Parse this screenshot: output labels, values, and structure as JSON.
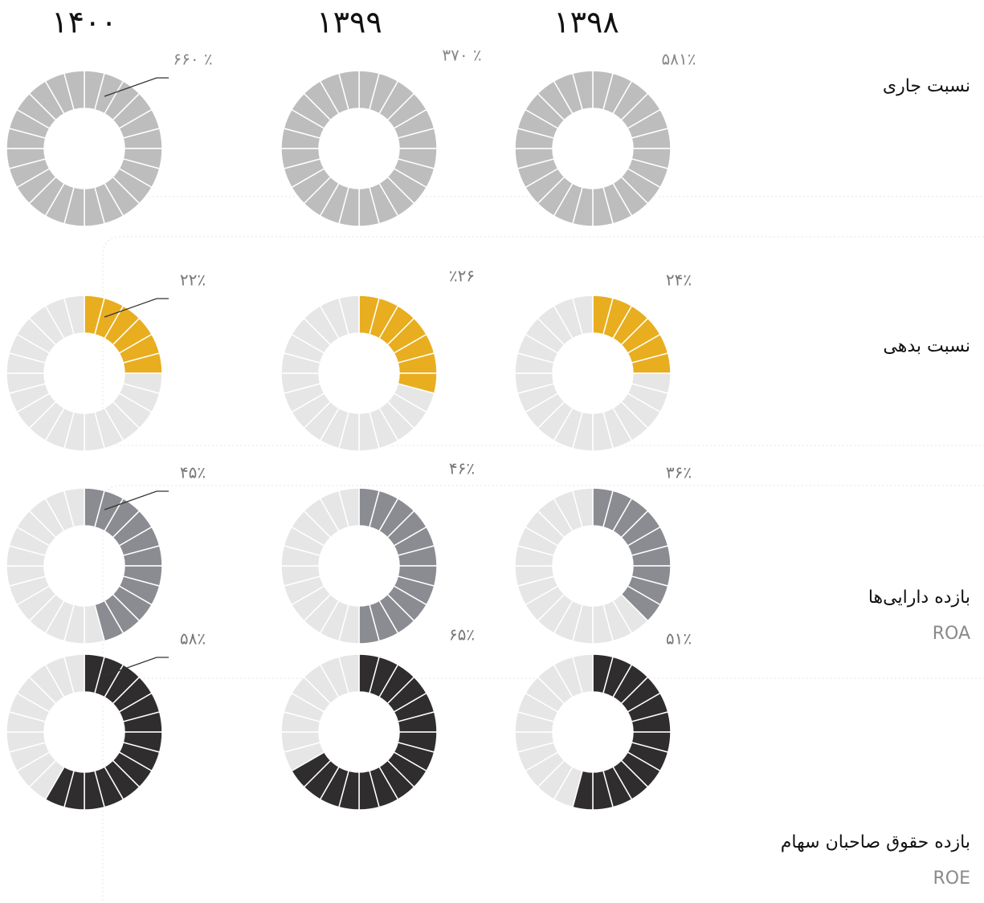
{
  "years": [
    "۱۴۰۰",
    "۱۳۹۹",
    "۱۳۹۸"
  ],
  "rows": [
    {
      "label": "نسبت جاری",
      "color": "#bdbdbd",
      "cells": [
        {
          "value": 660,
          "value_label": "۶۶۰ ٪"
        },
        {
          "value": 370,
          "value_label": "۳۷۰ ٪"
        },
        {
          "value": 581,
          "value_label": "۵۸۱٪"
        }
      ]
    },
    {
      "label": "نسبت بدهی",
      "color": "#e8ae1f",
      "cells": [
        {
          "value": 22,
          "value_label": "۲۲٪"
        },
        {
          "value": 26,
          "value_label": "٪۲۶"
        },
        {
          "value": 24,
          "value_label": "۲۴٪"
        }
      ]
    },
    {
      "label": "بازده دارایی‌ها",
      "sublabel": "ROA",
      "color": "#8b8c91",
      "cells": [
        {
          "value": 45,
          "value_label": "۴۵٪"
        },
        {
          "value": 46,
          "value_label": "۴۶٪"
        },
        {
          "value": 36,
          "value_label": "۳۶٪"
        }
      ]
    },
    {
      "label": "بازده حقوق صاحبان سهام",
      "sublabel": "ROE",
      "color": "#2f2d2d",
      "cells": [
        {
          "value": 58,
          "value_label": "۵۸٪"
        },
        {
          "value": 65,
          "value_label": "۶۵٪"
        },
        {
          "value": 51,
          "value_label": "۵۱٪"
        }
      ]
    }
  ]
}
